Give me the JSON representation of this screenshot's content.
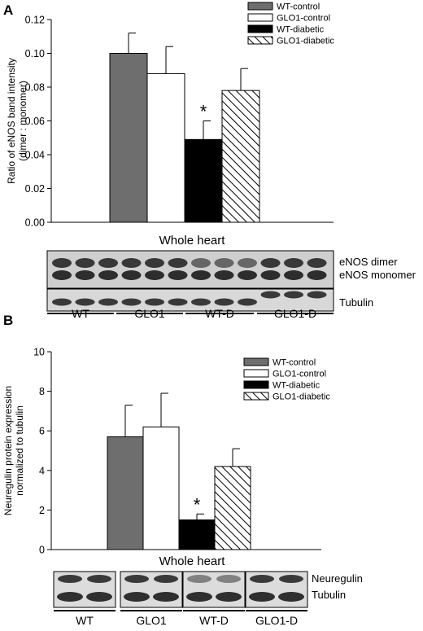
{
  "panels": {
    "a": {
      "letter": "A"
    },
    "b": {
      "letter": "B"
    }
  },
  "colors": {
    "WT-control": "#6e6e6e",
    "GLO1-control": "#ffffff",
    "WT-diabetic": "#000000",
    "GLO1-diabetic": "hatched"
  },
  "chart_data": [
    {
      "type": "bar",
      "panel": "A",
      "ylabel": "Ratio of eNOS band intensity\n(dimer : monomer)",
      "xlabel": "Whole heart",
      "ylim": [
        0,
        0.12
      ],
      "yticks": [
        "0.00",
        "0.02",
        "0.04",
        "0.06",
        "0.08",
        "0.10",
        "0.12"
      ],
      "legend_position": "top-right",
      "series": [
        {
          "name": "WT-control",
          "value": 0.1,
          "error": 0.012
        },
        {
          "name": "GLO1-control",
          "value": 0.088,
          "error": 0.016
        },
        {
          "name": "WT-diabetic",
          "value": 0.049,
          "error": 0.011,
          "annotation": "*"
        },
        {
          "name": "GLO1-diabetic",
          "value": 0.078,
          "error": 0.013
        }
      ],
      "blot": {
        "band_labels": [
          "eNOS dimer",
          "eNOS monomer",
          "Tubulin"
        ],
        "groups": [
          "WT",
          "GLO1",
          "WT-D",
          "GLO1-D"
        ]
      }
    },
    {
      "type": "bar",
      "panel": "B",
      "ylabel": "Neuregulin protein expression\nnormalized to tubulin",
      "xlabel": "Whole heart",
      "ylim": [
        0,
        10
      ],
      "yticks": [
        "0",
        "2",
        "4",
        "6",
        "8",
        "10"
      ],
      "legend_position": "top-right",
      "series": [
        {
          "name": "WT-control",
          "value": 5.7,
          "error": 1.6
        },
        {
          "name": "GLO1-control",
          "value": 6.2,
          "error": 1.7
        },
        {
          "name": "WT-diabetic",
          "value": 1.5,
          "error": 0.3,
          "annotation": "*"
        },
        {
          "name": "GLO1-diabetic",
          "value": 4.2,
          "error": 0.9
        }
      ],
      "blot": {
        "band_labels": [
          "Neuregulin",
          "Tubulin"
        ],
        "groups": [
          "WT",
          "GLO1",
          "WT-D",
          "GLO1-D"
        ]
      }
    }
  ]
}
